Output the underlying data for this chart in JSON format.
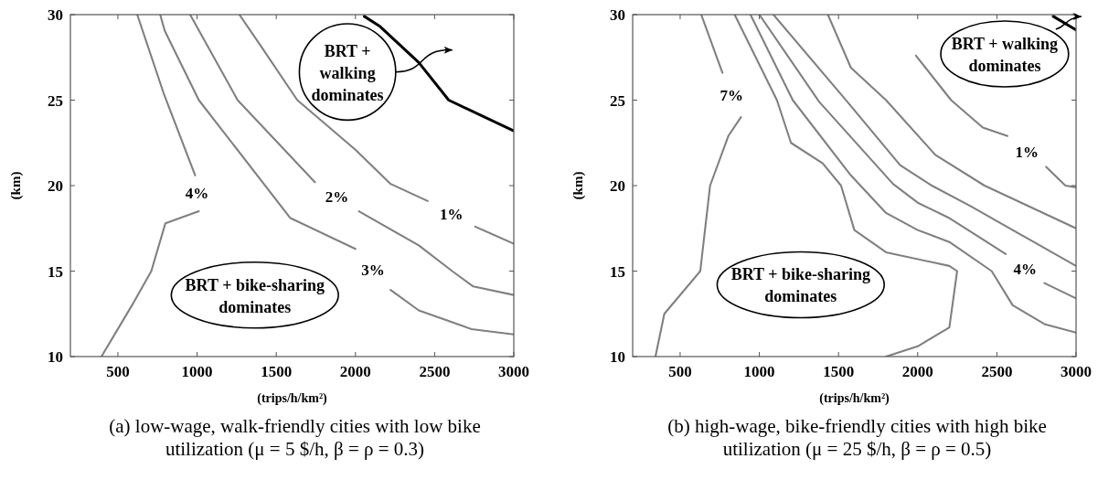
{
  "chart_data": [
    {
      "type": "line",
      "xlabel": "(trips/h/km²)",
      "ylabel": "(km)",
      "xlim": [
        200,
        3000
      ],
      "ylim": [
        10,
        30
      ],
      "xticks": [
        500,
        1000,
        1500,
        2000,
        2500,
        3000
      ],
      "yticks": [
        10,
        15,
        20,
        25,
        30
      ],
      "series": [
        {
          "name": "4%",
          "color": "#808080",
          "x": [
            622,
            789,
            988,
            null,
            1011,
            800,
            711,
            589,
            396
          ],
          "values": [
            30,
            25.4,
            20.6,
            null,
            18.5,
            17.8,
            15.0,
            13.0,
            10
          ]
        },
        {
          "name": "3%",
          "color": "#808080",
          "x": [
            767,
            796,
            1011,
            1589,
            2000,
            null,
            2222,
            2400,
            2600,
            2733,
            3000
          ],
          "values": [
            30,
            29.05,
            25.0,
            18.1,
            16.3,
            null,
            13.9,
            12.7,
            12.05,
            11.6,
            11.3
          ]
        },
        {
          "name": "2%",
          "color": "#808080",
          "x": [
            956,
            1256,
            1744,
            null,
            2022,
            2400,
            2611,
            2744,
            3000
          ],
          "values": [
            30,
            25.0,
            20.2,
            null,
            18.5,
            16.5,
            15.0,
            14.1,
            13.6
          ]
        },
        {
          "name": "1%",
          "color": "#808080",
          "x": [
            1267,
            1400,
            1633,
            2000,
            2222,
            2456,
            null,
            2756,
            3000
          ],
          "values": [
            30,
            28.2,
            25.0,
            22.1,
            20.1,
            19.1,
            null,
            17.6,
            16.6
          ]
        },
        {
          "color": "#000000",
          "x": [
            2056,
            2156,
            2400,
            2589,
            3000
          ],
          "values": [
            29.9,
            29.3,
            27.2,
            25.0,
            23.2
          ]
        }
      ],
      "annotations": [
        "BRT +\nwalking\ndominates",
        "BRT + bike-sharing\ndominates",
        "(a) low-wage, walk-friendly cities with low bike utilization (μ = 5 $/h, β = ρ = 0.3)"
      ]
    },
    {
      "type": "line",
      "xlabel": "(trips/h/km²)",
      "ylabel": "(km)",
      "xlim": [
        200,
        3000
      ],
      "ylim": [
        10,
        30
      ],
      "xticks": [
        500,
        1000,
        1500,
        2000,
        2500,
        3000
      ],
      "yticks": [
        10,
        15,
        20,
        25,
        30
      ],
      "series": [
        {
          "name": "7%",
          "color": "#808080",
          "x": [
            633,
            767,
            null,
            884,
            804,
            689,
            627,
            400,
            344
          ],
          "values": [
            30,
            26.6,
            null,
            24.0,
            22.9,
            20.0,
            15.0,
            12.5,
            10
          ]
        },
        {
          "color": "#808080",
          "x": [
            844,
            1111,
            1200,
            1400,
            1516,
            1600,
            1800,
            2200,
            2249,
            2200,
            2000,
            1800
          ],
          "values": [
            30,
            25.0,
            22.5,
            21.3,
            20.0,
            17.4,
            16.1,
            15.3,
            15.0,
            11.7,
            10.6,
            10.0
          ]
        },
        {
          "color": "#808080",
          "x": [
            944,
            1211,
            1578,
            1800,
            2000,
            2200,
            2467,
            2600,
            2800,
            3000
          ],
          "values": [
            30,
            25.0,
            20.6,
            18.4,
            17.4,
            16.7,
            15.0,
            13.0,
            11.9,
            11.4
          ]
        },
        {
          "name": "4%",
          "color": "#808080",
          "x": [
            1000,
            1378,
            1844,
            2000,
            2200,
            2556,
            null,
            2800,
            3000
          ],
          "values": [
            30,
            24.9,
            20.1,
            19.0,
            18.1,
            16.0,
            null,
            14.3,
            13.4
          ]
        },
        {
          "color": "#808080",
          "x": [
            1089,
            1556,
            1889,
            2089,
            2333,
            2733,
            3000
          ],
          "values": [
            30,
            24.9,
            21.2,
            20.0,
            18.8,
            16.7,
            15.3
          ]
        },
        {
          "color": "#808080",
          "x": [
            1433,
            1578,
            1800,
            2111,
            2422,
            3000
          ],
          "values": [
            30,
            26.9,
            25.0,
            21.8,
            20.0,
            17.5
          ]
        },
        {
          "name": "1%",
          "color": "#808080",
          "x": [
            1989,
            2211,
            2411,
            2567,
            null,
            2811,
            2933,
            3000
          ],
          "values": [
            27.6,
            25.0,
            23.4,
            22.9,
            null,
            21.1,
            20.0,
            19.9
          ]
        },
        {
          "color": "#000000",
          "x": [
            2856,
            3000
          ],
          "values": [
            29.9,
            29.1
          ]
        }
      ],
      "annotations": [
        "BRT + walking\ndominates",
        "BRT + bike-sharing\ndominates",
        "(b) high-wage, bike-friendly cities with high bike utilization (μ = 25 $/h, β = ρ = 0.5)"
      ]
    }
  ]
}
